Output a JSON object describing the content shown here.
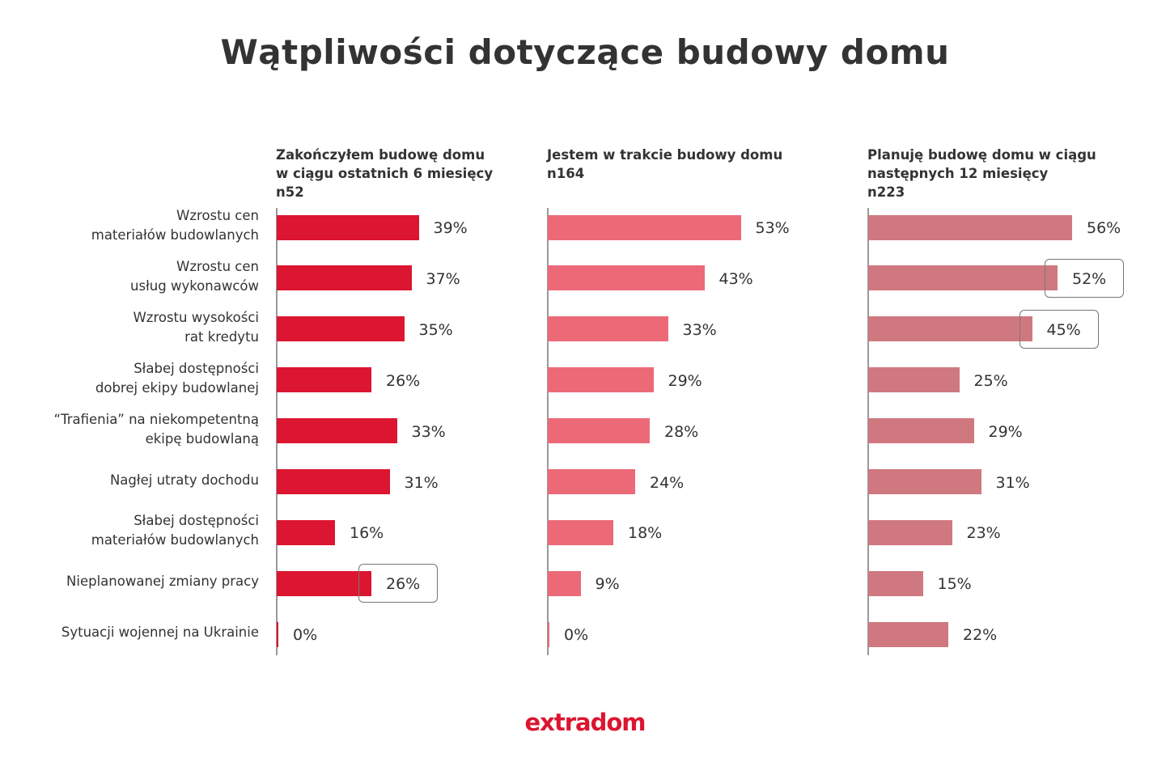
{
  "title": "Wątpliwości dotyczące budowy domu",
  "logo_text": "extradom",
  "chart_data": {
    "type": "bar",
    "orientation": "horizontal",
    "title": "Wątpliwości dotyczące budowy domu",
    "unit": "%",
    "xlim": [
      0,
      60
    ],
    "grid": false,
    "categories": [
      "Wzrostu cen\nmateriałów budowlanych",
      "Wzrostu cen\nusług wykonawców",
      "Wzrostu wysokości\nrat kredytu",
      "Słabej dostępności\ndobrej ekipy budowlanej",
      "“Trafienia” na niekompetentną\nekipę budowlaną",
      "Nagłej utraty dochodu",
      "Słabej dostępności\nmateriałów budowlanych",
      "Nieplanowanej zmiany pracy",
      "Sytuacji wojennej na Ukrainie"
    ],
    "panels": [
      {
        "header": "Zakończyłem budowę domu\nw ciągu ostatnich 6 miesięcy\nn52",
        "color": "#dc1530",
        "values": [
          39,
          37,
          35,
          26,
          33,
          31,
          16,
          26,
          0
        ],
        "highlighted": [
          7
        ]
      },
      {
        "header": "Jestem w trakcie budowy domu\nn164",
        "color": "#ec6a78",
        "values": [
          53,
          43,
          33,
          29,
          28,
          24,
          18,
          9,
          0
        ],
        "highlighted": []
      },
      {
        "header": "Planuję budowę domu w ciągu\nnastępnych 12 miesięcy\nn223",
        "color": "#d07880",
        "values": [
          56,
          52,
          45,
          25,
          29,
          31,
          23,
          15,
          22
        ],
        "highlighted": [
          1,
          2
        ]
      }
    ]
  }
}
